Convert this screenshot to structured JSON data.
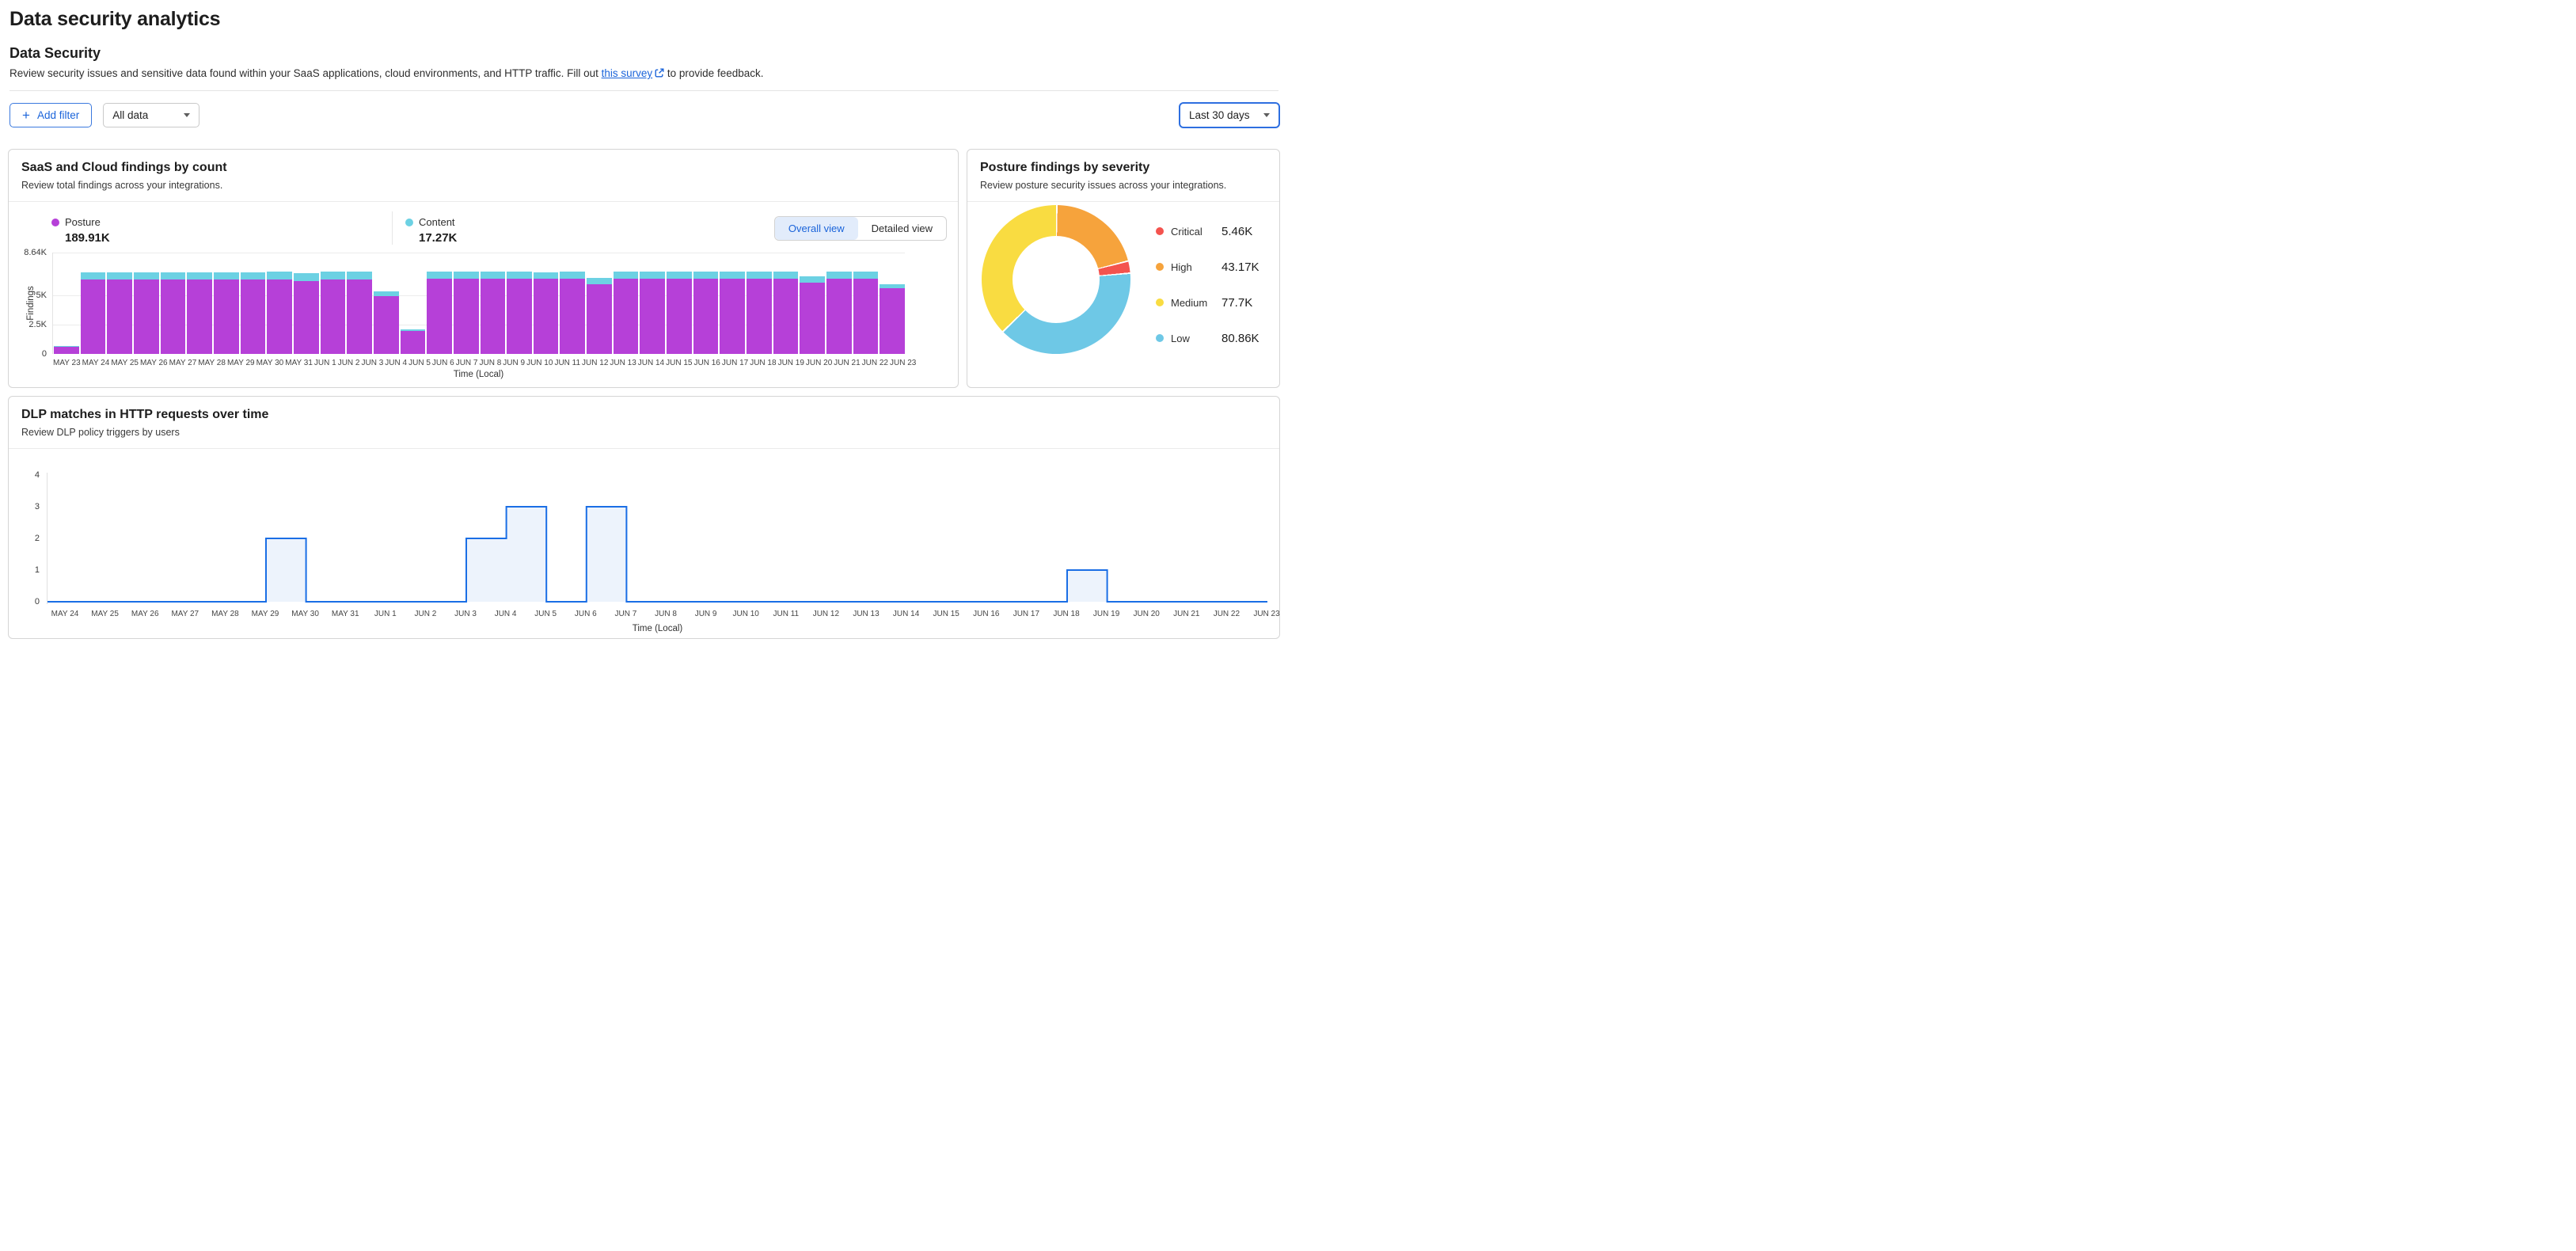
{
  "page": {
    "title": "Data security analytics",
    "section_title": "Data Security",
    "description_prefix": "Review security issues and sensitive data found within your SaaS applications, cloud environments, and HTTP traffic. Fill out ",
    "link_text": "this survey",
    "description_suffix": " to provide feedback."
  },
  "filters": {
    "add_filter": "Add filter",
    "scope": "All data",
    "time_range": "Last 30 days"
  },
  "cards": {
    "findings": {
      "title": "SaaS and Cloud findings by count",
      "subtitle": "Review total findings across your integrations.",
      "views": [
        "Overall view",
        "Detailed view"
      ],
      "active_view": "Overall view"
    },
    "severity": {
      "title": "Posture findings by severity",
      "subtitle": "Review posture security issues across your integrations."
    },
    "dlp": {
      "title": "DLP matches in HTTP requests over time",
      "subtitle": "Review DLP policy triggers by users"
    }
  },
  "chart_data": [
    {
      "id": "saas_cloud_findings_by_count",
      "type": "bar",
      "stacked": true,
      "title": "SaaS and Cloud findings by count",
      "xlabel": "Time (Local)",
      "ylabel": "Findings",
      "ylim": [
        0,
        8640
      ],
      "yticks": [
        {
          "label": "8.64K",
          "value": 8640
        },
        {
          "label": "5K",
          "value": 5000
        },
        {
          "label": "2.5K",
          "value": 2500
        },
        {
          "label": "0",
          "value": 0
        }
      ],
      "gridlines": [
        8640,
        5000,
        2500
      ],
      "categories": [
        "MAY 23",
        "MAY 24",
        "MAY 25",
        "MAY 26",
        "MAY 27",
        "MAY 28",
        "MAY 29",
        "MAY 30",
        "MAY 31",
        "JUN 1",
        "JUN 2",
        "JUN 3",
        "JUN 4",
        "JUN 5",
        "JUN 6",
        "JUN 7",
        "JUN 8",
        "JUN 9",
        "JUN 10",
        "JUN 11",
        "JUN 12",
        "JUN 13",
        "JUN 14",
        "JUN 15",
        "JUN 16",
        "JUN 17",
        "JUN 18",
        "JUN 19",
        "JUN 20",
        "JUN 21",
        "JUN 22",
        "JUN 23"
      ],
      "series": [
        {
          "name": "Posture",
          "total": "189.91K",
          "color": "#B640D8",
          "values": [
            620,
            6350,
            6350,
            6330,
            6340,
            6340,
            6340,
            6350,
            6360,
            6180,
            6350,
            6370,
            4900,
            1950,
            6380,
            6380,
            6380,
            6380,
            6380,
            6390,
            5930,
            6400,
            6400,
            6400,
            6400,
            6390,
            6400,
            6400,
            6050,
            6410,
            6400,
            5600
          ]
        },
        {
          "name": "Content",
          "total": "17.27K",
          "color": "#6CD1E3",
          "values": [
            90,
            620,
            620,
            620,
            620,
            620,
            620,
            620,
            630,
            680,
            640,
            620,
            420,
            160,
            620,
            620,
            620,
            620,
            600,
            620,
            580,
            620,
            620,
            620,
            620,
            600,
            620,
            620,
            600,
            620,
            620,
            350
          ]
        }
      ]
    },
    {
      "id": "posture_findings_by_severity",
      "type": "pie",
      "donut": true,
      "title": "Posture findings by severity",
      "clockwise_order_from_top": [
        "High",
        "Critical",
        "Low",
        "Medium"
      ],
      "segments": [
        {
          "label": "Critical",
          "value": 5460,
          "display": "5.46K",
          "color": "#F4534E"
        },
        {
          "label": "High",
          "value": 43170,
          "display": "43.17K",
          "color": "#F6A33C"
        },
        {
          "label": "Medium",
          "value": 77700,
          "display": "77.7K",
          "color": "#F9DC41"
        },
        {
          "label": "Low",
          "value": 80860,
          "display": "80.86K",
          "color": "#6EC8E6"
        }
      ]
    },
    {
      "id": "dlp_matches_over_time",
      "type": "area",
      "step": true,
      "title": "DLP matches in HTTP requests over time",
      "xlabel": "Time (Local)",
      "ylim": [
        0,
        4
      ],
      "yticks": [
        4,
        3,
        2,
        1,
        0
      ],
      "line_color": "#1A6EE5",
      "fill_color": "#EDF3FC",
      "categories": [
        "MAY 24",
        "MAY 25",
        "MAY 26",
        "MAY 27",
        "MAY 28",
        "MAY 29",
        "MAY 30",
        "MAY 31",
        "JUN 1",
        "JUN 2",
        "JUN 3",
        "JUN 4",
        "JUN 5",
        "JUN 6",
        "JUN 7",
        "JUN 8",
        "JUN 9",
        "JUN 10",
        "JUN 11",
        "JUN 12",
        "JUN 13",
        "JUN 14",
        "JUN 15",
        "JUN 16",
        "JUN 17",
        "JUN 18",
        "JUN 19",
        "JUN 20",
        "JUN 21",
        "JUN 22",
        "JUN 23"
      ],
      "values": [
        0,
        0,
        0,
        0,
        0,
        2,
        0,
        0,
        0,
        0,
        2,
        3,
        0,
        3,
        0,
        0,
        0,
        0,
        0,
        0,
        0,
        0,
        0,
        0,
        0,
        1,
        0,
        0,
        0,
        0,
        0
      ]
    }
  ]
}
